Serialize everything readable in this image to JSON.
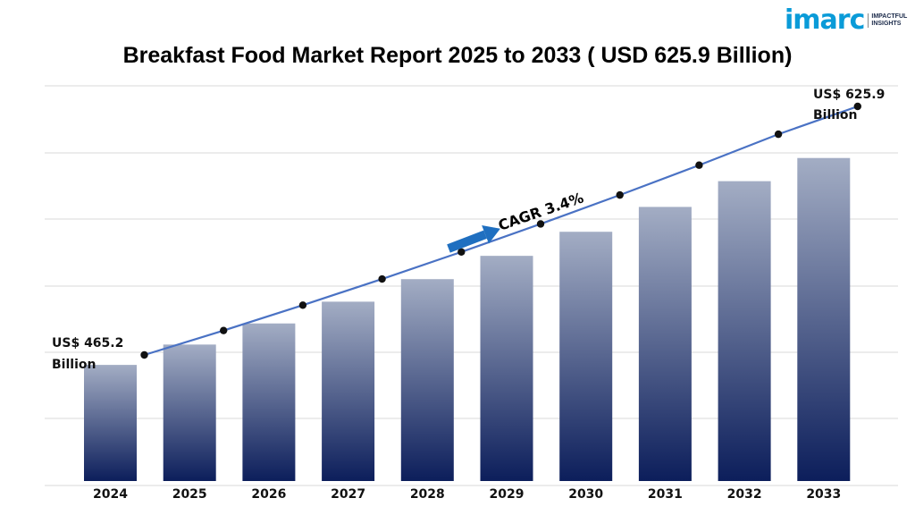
{
  "logo": {
    "word": "imarc",
    "tagline_1": "IMPACTFUL",
    "tagline_2": "INSIGHTS",
    "colors": [
      "#0a9bd8",
      "#e0307a",
      "#1b2a4a"
    ]
  },
  "title": "Breakfast Food Market Report 2025 to 2033 ( USD 625.9 Billion)",
  "cagr_label": "CAGR 3.4%",
  "colors": {
    "bar_top": "#a3adc4",
    "bar_bottom": "#0c1e5b",
    "line": "#4a72c4",
    "marker": "#111111",
    "arrow": "#1f6fc0",
    "grid": "#d9d9d9"
  },
  "chart_data": {
    "type": "bar",
    "categories": [
      "2024",
      "2025",
      "2026",
      "2027",
      "2028",
      "2029",
      "2030",
      "2031",
      "2032",
      "2033"
    ],
    "values": [
      465.2,
      481.0,
      497.4,
      514.3,
      531.8,
      549.9,
      568.6,
      587.9,
      607.9,
      625.9
    ],
    "annotations": [
      {
        "category": "2024",
        "line1": "US$ 465.2",
        "line2": "Billion"
      },
      {
        "category": "2033",
        "line1": "US$ 625.9",
        "line2": "Billion"
      }
    ],
    "grid": true,
    "legend": "none"
  }
}
